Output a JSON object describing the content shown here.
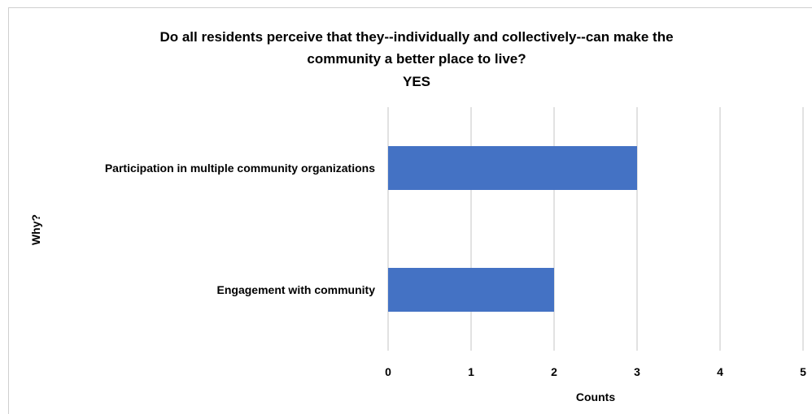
{
  "chart_data": {
    "type": "bar",
    "orientation": "horizontal",
    "title_lines": [
      "Do all residents perceive that they--individually and collectively--can make the",
      "community a better place to live?",
      "YES"
    ],
    "categories": [
      "Participation in multiple community organizations",
      "Engagement with community"
    ],
    "values": [
      3,
      2
    ],
    "xlabel": "Counts",
    "ylabel": "Why?",
    "xlim": [
      0,
      5
    ],
    "xticks": [
      "0",
      "1",
      "2",
      "3",
      "4",
      "5"
    ],
    "grid": true,
    "legend": "none",
    "bar_color": "#4472c4",
    "grid_color": "#d9d9d9"
  }
}
